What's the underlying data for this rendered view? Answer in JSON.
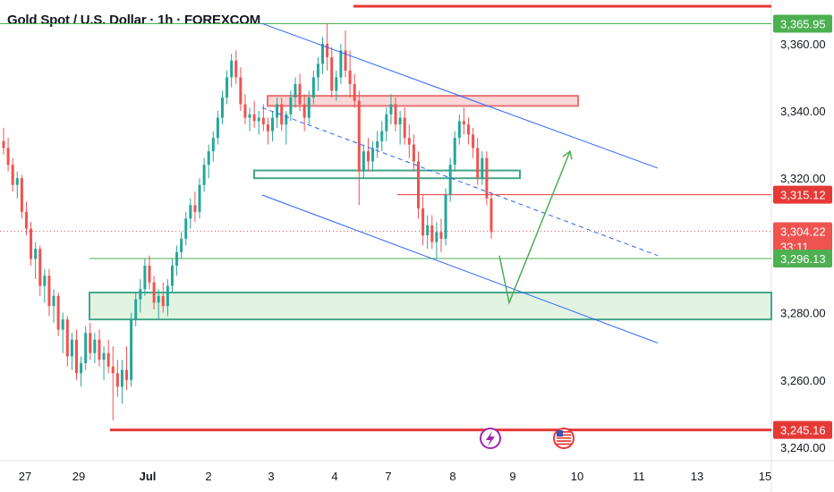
{
  "header": {
    "title": "Gold Spot / U.S. Dollar · 1h · FOREXCOM",
    "currency": "USD"
  },
  "events": {
    "flash_icon": "lightning-icon",
    "flag_icon": "us-flag-icon"
  },
  "colors": {
    "up": "#26a69a",
    "down": "#ef5350",
    "channel": "#2962ff",
    "level_green": "#4caf50",
    "level_red": "#e53935",
    "zone_green_fill": "#dff2df",
    "zone_green_border": "#43a68a",
    "zone_red_fill": "#fbd3d3",
    "zone_red_border": "#e57373"
  },
  "chart_data": {
    "type": "candlestick",
    "instrument": "Gold Spot / U.S. Dollar",
    "timeframe": "1h",
    "x_ticks": [
      "27",
      "29",
      "Jul",
      "2",
      "3",
      "4",
      "7",
      "8",
      "9",
      "10",
      "11",
      "13",
      "15"
    ],
    "y_ticks": [
      3240,
      3260,
      3280,
      3300,
      3320,
      3340,
      3360
    ],
    "y_tick_labels": [
      "3,240.00",
      "3,260.00",
      "3,280.00",
      "3,300.00",
      "3,320.00",
      "3,340.00",
      "3,360.00"
    ],
    "ylim": [
      3236,
      3373
    ],
    "price_badges": [
      {
        "value": 3365.95,
        "label": "3,365.95",
        "color": "#4caf50"
      },
      {
        "value": 3315.12,
        "label": "3,315.12",
        "color": "#e53935"
      },
      {
        "value": 3304.22,
        "label": "3,304.22",
        "countdown": "33:11",
        "color": "#ef5350"
      },
      {
        "value": 3296.13,
        "label": "3,296.13",
        "color": "#4caf50"
      },
      {
        "value": 3245.16,
        "label": "3,245.16",
        "color": "#e53935"
      }
    ],
    "horizontal_levels": [
      {
        "price": 3365.95,
        "color": "green",
        "from": "start"
      },
      {
        "price": 3296.13,
        "color": "green",
        "from": "Jun 30"
      },
      {
        "price": 3315.12,
        "color": "red",
        "from": "Jul 7"
      },
      {
        "price": 3245.16,
        "color": "red",
        "from": "Jun 29"
      }
    ],
    "zones": [
      {
        "kind": "resistance",
        "price_low": 3341.5,
        "price_high": 3344.5
      },
      {
        "kind": "support",
        "price_low": 3320.0,
        "price_high": 3322.3
      },
      {
        "kind": "demand",
        "price_low": 3278.0,
        "price_high": 3286.0
      }
    ],
    "channel": {
      "upper": [
        {
          "date": "Jul 3",
          "price": 3366
        },
        {
          "date": "Jul 11",
          "price": 3323
        }
      ],
      "lower": [
        {
          "date": "Jul 3",
          "price": 3315
        },
        {
          "date": "Jul 11",
          "price": 3271
        }
      ],
      "mid": [
        {
          "date": "Jul 3",
          "price": 3341
        },
        {
          "date": "Jul 11",
          "price": 3297
        }
      ]
    },
    "projection": [
      {
        "date": "Jul 8",
        "price": 3297
      },
      {
        "date": "Jul 9",
        "price": 3283
      },
      {
        "date": "Jul 10",
        "price": 3328
      }
    ],
    "candles": [
      [
        3331,
        3335,
        3327,
        3329
      ],
      [
        3329,
        3332,
        3322,
        3324
      ],
      [
        3324,
        3326,
        3316,
        3318
      ],
      [
        3318,
        3322,
        3314,
        3320
      ],
      [
        3320,
        3321,
        3308,
        3310
      ],
      [
        3310,
        3313,
        3303,
        3305
      ],
      [
        3305,
        3307,
        3294,
        3296
      ],
      [
        3296,
        3301,
        3290,
        3299
      ],
      [
        3299,
        3300,
        3285,
        3288
      ],
      [
        3288,
        3293,
        3283,
        3291
      ],
      [
        3291,
        3293,
        3279,
        3282
      ],
      [
        3282,
        3287,
        3277,
        3285
      ],
      [
        3285,
        3286,
        3273,
        3275
      ],
      [
        3275,
        3280,
        3268,
        3278
      ],
      [
        3278,
        3279,
        3264,
        3267
      ],
      [
        3267,
        3274,
        3263,
        3272
      ],
      [
        3272,
        3275,
        3260,
        3262
      ],
      [
        3262,
        3267,
        3258,
        3265
      ],
      [
        3265,
        3276,
        3263,
        3274
      ],
      [
        3274,
        3277,
        3266,
        3268
      ],
      [
        3268,
        3274,
        3265,
        3272
      ],
      [
        3272,
        3275,
        3264,
        3266
      ],
      [
        3266,
        3270,
        3260,
        3268
      ],
      [
        3268,
        3272,
        3262,
        3264
      ],
      [
        3264,
        3270,
        3248,
        3262
      ],
      [
        3262,
        3266,
        3255,
        3258
      ],
      [
        3258,
        3266,
        3253,
        3263
      ],
      [
        3263,
        3270,
        3257,
        3260
      ],
      [
        3260,
        3280,
        3258,
        3278
      ],
      [
        3278,
        3286,
        3276,
        3284
      ],
      [
        3284,
        3290,
        3280,
        3287
      ],
      [
        3287,
        3296,
        3285,
        3294
      ],
      [
        3294,
        3297,
        3287,
        3289
      ],
      [
        3289,
        3291,
        3281,
        3283
      ],
      [
        3283,
        3287,
        3278,
        3285
      ],
      [
        3285,
        3289,
        3280,
        3282
      ],
      [
        3282,
        3290,
        3279,
        3288
      ],
      [
        3288,
        3296,
        3286,
        3294
      ],
      [
        3294,
        3300,
        3291,
        3298
      ],
      [
        3298,
        3304,
        3296,
        3302
      ],
      [
        3302,
        3310,
        3300,
        3308
      ],
      [
        3308,
        3314,
        3305,
        3312
      ],
      [
        3312,
        3316,
        3307,
        3310
      ],
      [
        3310,
        3320,
        3308,
        3318
      ],
      [
        3318,
        3326,
        3316,
        3324
      ],
      [
        3324,
        3330,
        3320,
        3328
      ],
      [
        3328,
        3334,
        3325,
        3332
      ],
      [
        3332,
        3340,
        3330,
        3338
      ],
      [
        3338,
        3346,
        3336,
        3344
      ],
      [
        3344,
        3352,
        3342,
        3350
      ],
      [
        3350,
        3357,
        3347,
        3355
      ],
      [
        3355,
        3358,
        3348,
        3350
      ],
      [
        3350,
        3353,
        3340,
        3342
      ],
      [
        3342,
        3345,
        3336,
        3338
      ],
      [
        3338,
        3341,
        3334,
        3339
      ],
      [
        3339,
        3343,
        3335,
        3337
      ],
      [
        3337,
        3340,
        3333,
        3338
      ],
      [
        3338,
        3342,
        3334,
        3336
      ],
      [
        3336,
        3338,
        3330,
        3334
      ],
      [
        3334,
        3340,
        3331,
        3338
      ],
      [
        3338,
        3344,
        3335,
        3342
      ],
      [
        3342,
        3344,
        3334,
        3336
      ],
      [
        3336,
        3340,
        3330,
        3339
      ],
      [
        3339,
        3346,
        3337,
        3344
      ],
      [
        3344,
        3350,
        3341,
        3348
      ],
      [
        3348,
        3351,
        3340,
        3342
      ],
      [
        3342,
        3345,
        3334,
        3338
      ],
      [
        3338,
        3346,
        3336,
        3344
      ],
      [
        3344,
        3352,
        3342,
        3350
      ],
      [
        3350,
        3356,
        3346,
        3354
      ],
      [
        3354,
        3362,
        3351,
        3360
      ],
      [
        3360,
        3366,
        3352,
        3356
      ],
      [
        3356,
        3359,
        3344,
        3346
      ],
      [
        3346,
        3352,
        3343,
        3350
      ],
      [
        3350,
        3360,
        3348,
        3358
      ],
      [
        3358,
        3364,
        3350,
        3352
      ],
      [
        3352,
        3358,
        3344,
        3348
      ],
      [
        3348,
        3351,
        3341,
        3343
      ],
      [
        3343,
        3346,
        3312,
        3322
      ],
      [
        3322,
        3330,
        3320,
        3328
      ],
      [
        3328,
        3332,
        3322,
        3325
      ],
      [
        3325,
        3331,
        3322,
        3329
      ],
      [
        3329,
        3334,
        3326,
        3331
      ],
      [
        3331,
        3337,
        3328,
        3334
      ],
      [
        3334,
        3341,
        3331,
        3339
      ],
      [
        3339,
        3345,
        3336,
        3342
      ],
      [
        3342,
        3344,
        3334,
        3336
      ],
      [
        3336,
        3340,
        3330,
        3338
      ],
      [
        3338,
        3341,
        3330,
        3332
      ],
      [
        3332,
        3336,
        3326,
        3330
      ],
      [
        3330,
        3333,
        3322,
        3325
      ],
      [
        3325,
        3328,
        3308,
        3311
      ],
      [
        3311,
        3315,
        3300,
        3303
      ],
      [
        3303,
        3309,
        3299,
        3306
      ],
      [
        3306,
        3309,
        3299,
        3301
      ],
      [
        3301,
        3307,
        3296,
        3304
      ],
      [
        3304,
        3308,
        3298,
        3302
      ],
      [
        3302,
        3317,
        3300,
        3315
      ],
      [
        3315,
        3326,
        3313,
        3324
      ],
      [
        3324,
        3334,
        3322,
        3332
      ],
      [
        3332,
        3339,
        3330,
        3337
      ],
      [
        3337,
        3341,
        3333,
        3336
      ],
      [
        3336,
        3338,
        3330,
        3333
      ],
      [
        3333,
        3335,
        3326,
        3329
      ],
      [
        3329,
        3332,
        3318,
        3320
      ],
      [
        3320,
        3328,
        3318,
        3326
      ],
      [
        3326,
        3328,
        3312,
        3314
      ],
      [
        3314,
        3316,
        3302,
        3304
      ]
    ]
  }
}
